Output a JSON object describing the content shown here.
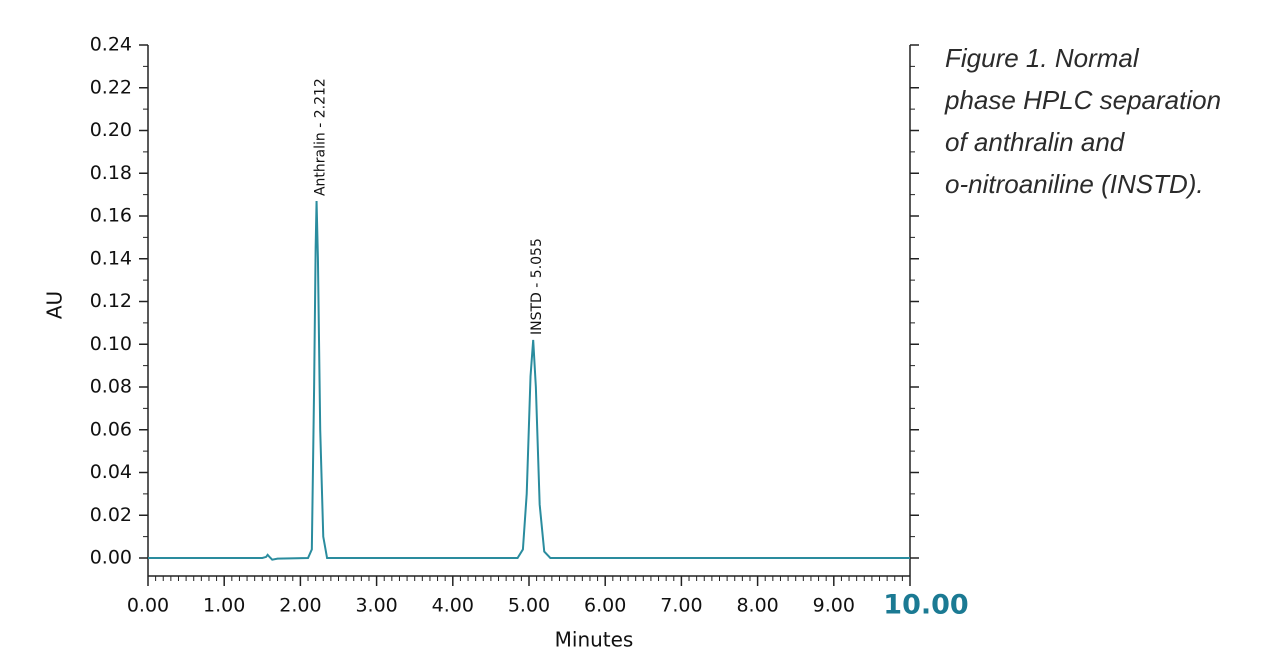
{
  "chart_data": {
    "type": "line",
    "caption": [
      "Figure 1. Normal",
      "phase HPLC separation",
      "of anthralin and",
      "o-nitroaniline (INSTD)."
    ],
    "xlabel": "Minutes",
    "ylabel": "AU",
    "xlim": [
      0,
      10
    ],
    "ylim": [
      0,
      0.24
    ],
    "xticks": [
      {
        "value": 0,
        "label": "0.00"
      },
      {
        "value": 1,
        "label": "1.00"
      },
      {
        "value": 2,
        "label": "2.00"
      },
      {
        "value": 3,
        "label": "3.00"
      },
      {
        "value": 4,
        "label": "4.00"
      },
      {
        "value": 5,
        "label": "5.00"
      },
      {
        "value": 6,
        "label": "6.00"
      },
      {
        "value": 7,
        "label": "7.00"
      },
      {
        "value": 8,
        "label": "8.00"
      },
      {
        "value": 9,
        "label": "9.00"
      },
      {
        "value": 10,
        "label": "10.00"
      }
    ],
    "yticks": [
      {
        "value": 0,
        "label": "0.00"
      },
      {
        "value": 0.02,
        "label": "0.02"
      },
      {
        "value": 0.04,
        "label": "0.04"
      },
      {
        "value": 0.06,
        "label": "0.06"
      },
      {
        "value": 0.08,
        "label": "0.08"
      },
      {
        "value": 0.1,
        "label": "0.10"
      },
      {
        "value": 0.12,
        "label": "0.12"
      },
      {
        "value": 0.14,
        "label": "0.14"
      },
      {
        "value": 0.16,
        "label": "0.16"
      },
      {
        "value": 0.18,
        "label": "0.18"
      },
      {
        "value": 0.2,
        "label": "0.20"
      },
      {
        "value": 0.22,
        "label": "0.22"
      },
      {
        "value": 0.24,
        "label": "0.24"
      }
    ],
    "x": [
      0,
      1.5,
      1.55,
      1.57,
      1.6,
      1.63,
      1.7,
      2.1,
      2.15,
      2.18,
      2.2,
      2.212,
      2.23,
      2.26,
      2.3,
      2.35,
      4.85,
      4.92,
      4.97,
      5.02,
      5.055,
      5.09,
      5.14,
      5.2,
      5.28,
      10
    ],
    "series": [
      {
        "color": "#2a8c9e",
        "values": [
          0,
          0,
          0.0005,
          0.0015,
          0.0003,
          -0.0008,
          -0.0003,
          0,
          0.004,
          0.08,
          0.145,
          0.167,
          0.14,
          0.06,
          0.01,
          0,
          0,
          0.004,
          0.03,
          0.085,
          0.102,
          0.08,
          0.025,
          0.003,
          0,
          0
        ]
      }
    ],
    "annotations": [
      {
        "text": "Anthralin - 2.212",
        "x": 2.212,
        "y": 0.167
      },
      {
        "text": "INSTD - 5.055",
        "x": 5.055,
        "y": 0.102
      }
    ]
  }
}
